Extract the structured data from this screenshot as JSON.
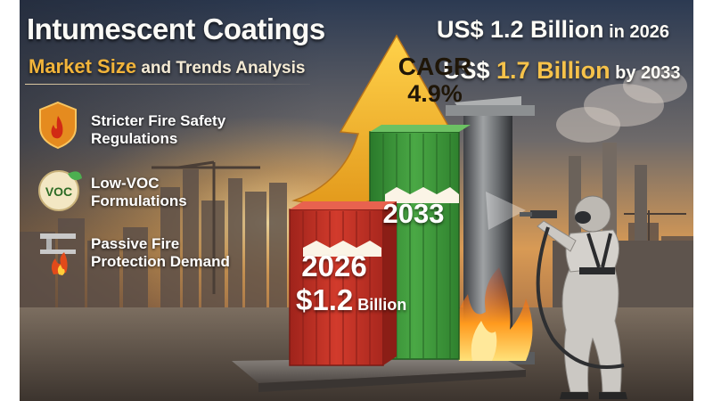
{
  "header": {
    "title": "Intumescent Coatings",
    "subtitle_strong": "Market Size",
    "subtitle_rest": " and Trends Analysis"
  },
  "stats": {
    "line1_value": "US$ 1.2 Billion",
    "line1_suffix": " in 2026",
    "line2_prefix": "US$ ",
    "line2_value": "1.7 Billion",
    "line2_suffix": " by 2033"
  },
  "features": [
    {
      "line1": "Stricter Fire Safety",
      "line2": "Regulations",
      "icon": "fire-shield-icon"
    },
    {
      "line1": "Low-VOC",
      "line2": "Formulations",
      "icon": "voc-leaf-icon",
      "icon_text": "VOC"
    },
    {
      "line1": "Passive Fire",
      "line2": "Protection Demand",
      "icon": "steel-beam-fire-icon"
    }
  ],
  "cagr": {
    "label": "CAGR",
    "value": "4.9%"
  },
  "bars": {
    "b2026": {
      "year": "2026",
      "value": "$1.2",
      "unit": " Billion",
      "color": "#c8372a"
    },
    "b2033": {
      "year": "2033",
      "color": "#3f9a3c"
    }
  },
  "colors": {
    "accent": "#f2b43a",
    "arrow": "#f3b72f",
    "sky_top": "#2f3e58",
    "sky_glow": "#e8a24a"
  }
}
